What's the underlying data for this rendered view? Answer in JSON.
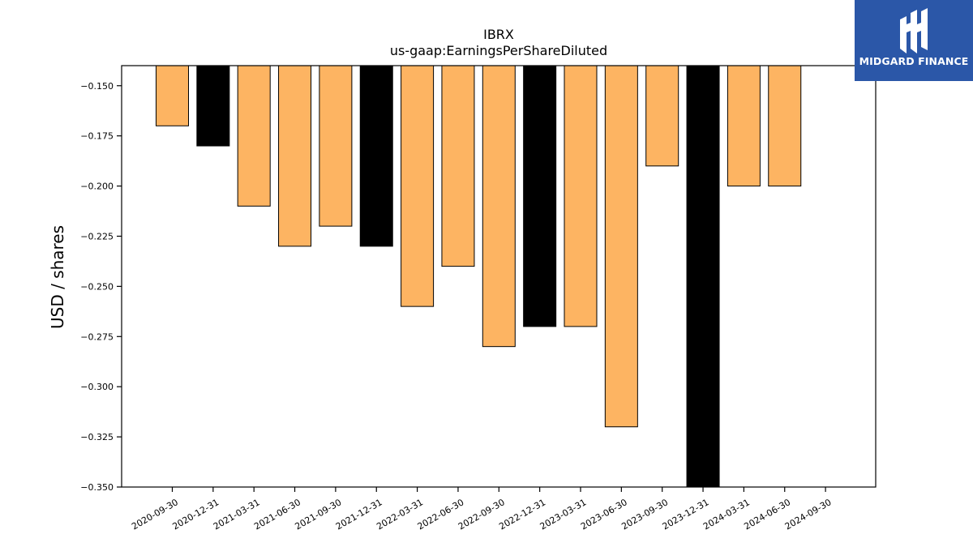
{
  "chart_data": {
    "type": "bar",
    "title": "IBRX",
    "subtitle": "us-gaap:EarningsPerShareDiluted",
    "ylabel": "USD / shares",
    "xlabel": "",
    "categories": [
      "2020-09-30",
      "2020-12-31",
      "2021-03-31",
      "2021-06-30",
      "2021-09-30",
      "2021-12-31",
      "2022-03-31",
      "2022-06-30",
      "2022-09-30",
      "2022-12-31",
      "2023-03-31",
      "2023-06-30",
      "2023-09-30",
      "2023-12-31",
      "2024-03-31",
      "2024-06-30",
      "2024-09-30"
    ],
    "values": [
      -0.17,
      -0.18,
      -0.21,
      -0.23,
      -0.22,
      -0.23,
      -0.26,
      -0.24,
      -0.28,
      -0.27,
      -0.27,
      -0.32,
      -0.19,
      -0.35,
      -0.2,
      -0.2,
      -0.14
    ],
    "period_type": [
      "quarter",
      "annual",
      "quarter",
      "quarter",
      "quarter",
      "annual",
      "quarter",
      "quarter",
      "quarter",
      "annual",
      "quarter",
      "quarter",
      "quarter",
      "annual",
      "quarter",
      "quarter",
      "quarter"
    ],
    "ylim": [
      -0.35,
      -0.14
    ],
    "yticks": [
      -0.15,
      -0.175,
      -0.2,
      -0.225,
      -0.25,
      -0.275,
      -0.3,
      -0.325,
      -0.35
    ],
    "ytick_labels": [
      "−0.150",
      "−0.175",
      "−0.200",
      "−0.225",
      "−0.250",
      "−0.275",
      "−0.300",
      "−0.325",
      "−0.350"
    ],
    "grid": false,
    "colors": {
      "quarter": "#fdb462",
      "annual": "#000000",
      "edge": "#000000"
    }
  },
  "logo": {
    "text": "MIDGARD FINANCE",
    "background": "#2b57a8",
    "icon": "midgard-m-logo-icon"
  }
}
